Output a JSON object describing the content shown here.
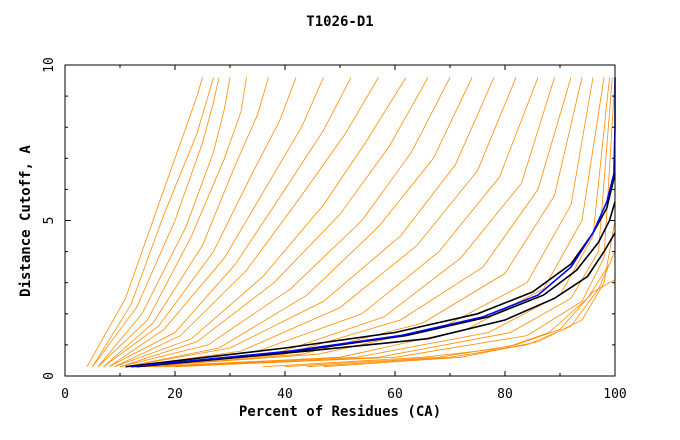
{
  "chart_data": {
    "type": "line",
    "title": "T1026-D1",
    "xlabel": "Percent of Residues (CA)",
    "ylabel": "Distance Cutoff, A",
    "xlim": [
      0,
      100
    ],
    "ylim": [
      0,
      10
    ],
    "x_ticks": [
      "0",
      "20",
      "40",
      "60",
      "80",
      "100"
    ],
    "y_ticks": [
      "0",
      "5",
      "10"
    ],
    "grid": false,
    "colors": {
      "many": "#ff8c00",
      "highlight_black": "#000000",
      "highlight_blue": "#0000ff"
    },
    "series": [
      {
        "color": "#ff8c00",
        "x": [
          4,
          11,
          17,
          22,
          24,
          25
        ],
        "y": [
          0.3,
          2.5,
          5.5,
          8.0,
          9.0,
          9.6
        ]
      },
      {
        "color": "#ff8c00",
        "x": [
          5,
          12,
          18,
          24,
          26,
          27
        ],
        "y": [
          0.3,
          2.3,
          5.2,
          7.8,
          9.0,
          9.6
        ]
      },
      {
        "color": "#ff8c00",
        "x": [
          5,
          13,
          20,
          25,
          27,
          28
        ],
        "y": [
          0.3,
          2.2,
          5.0,
          7.5,
          8.8,
          9.6
        ]
      },
      {
        "color": "#ff8c00",
        "x": [
          6,
          14,
          22,
          27,
          29,
          30
        ],
        "y": [
          0.3,
          2.0,
          4.8,
          7.2,
          8.6,
          9.6
        ]
      },
      {
        "color": "#ff8c00",
        "x": [
          6,
          15,
          23,
          29,
          32,
          33
        ],
        "y": [
          0.3,
          1.8,
          4.5,
          7.0,
          8.5,
          9.6
        ]
      },
      {
        "color": "#ff8c00",
        "x": [
          7,
          16,
          25,
          31,
          35,
          37
        ],
        "y": [
          0.3,
          1.7,
          4.2,
          6.8,
          8.4,
          9.6
        ]
      },
      {
        "color": "#ff8c00",
        "x": [
          7,
          17,
          27,
          34,
          39,
          42
        ],
        "y": [
          0.3,
          1.6,
          4.0,
          6.5,
          8.2,
          9.6
        ]
      },
      {
        "color": "#ff8c00",
        "x": [
          8,
          18,
          29,
          37,
          43,
          47
        ],
        "y": [
          0.3,
          1.5,
          3.8,
          6.2,
          8.0,
          9.6
        ]
      },
      {
        "color": "#ff8c00",
        "x": [
          8,
          20,
          31,
          40,
          47,
          52
        ],
        "y": [
          0.3,
          1.4,
          3.6,
          6.0,
          7.9,
          9.6
        ]
      },
      {
        "color": "#ff8c00",
        "x": [
          9,
          21,
          33,
          43,
          51,
          57
        ],
        "y": [
          0.3,
          1.3,
          3.4,
          5.8,
          7.8,
          9.6
        ]
      },
      {
        "color": "#ff8c00",
        "x": [
          9,
          23,
          36,
          47,
          55,
          62
        ],
        "y": [
          0.3,
          1.2,
          3.2,
          5.5,
          7.6,
          9.6
        ]
      },
      {
        "color": "#ff8c00",
        "x": [
          10,
          24,
          38,
          50,
          59,
          66
        ],
        "y": [
          0.3,
          1.1,
          3.0,
          5.2,
          7.4,
          9.6
        ]
      },
      {
        "color": "#ff8c00",
        "x": [
          10,
          26,
          41,
          54,
          63,
          70
        ],
        "y": [
          0.3,
          1.0,
          2.8,
          5.0,
          7.2,
          9.6
        ]
      },
      {
        "color": "#ff8c00",
        "x": [
          11,
          28,
          44,
          57,
          67,
          74
        ],
        "y": [
          0.3,
          0.9,
          2.6,
          4.8,
          7.0,
          9.6
        ]
      },
      {
        "color": "#ff8c00",
        "x": [
          11,
          30,
          47,
          61,
          71,
          78
        ],
        "y": [
          0.3,
          0.9,
          2.4,
          4.5,
          6.8,
          9.6
        ]
      },
      {
        "color": "#ff8c00",
        "x": [
          12,
          32,
          50,
          64,
          75,
          82
        ],
        "y": [
          0.3,
          0.8,
          2.2,
          4.2,
          6.6,
          9.6
        ]
      },
      {
        "color": "#ff8c00",
        "x": [
          12,
          35,
          54,
          68,
          79,
          86
        ],
        "y": [
          0.3,
          0.8,
          2.0,
          4.0,
          6.4,
          9.6
        ]
      },
      {
        "color": "#ff8c00",
        "x": [
          13,
          38,
          58,
          72,
          83,
          89
        ],
        "y": [
          0.3,
          0.7,
          1.9,
          3.8,
          6.2,
          9.6
        ]
      },
      {
        "color": "#ff8c00",
        "x": [
          13,
          40,
          61,
          76,
          86,
          92
        ],
        "y": [
          0.3,
          0.7,
          1.8,
          3.5,
          6.0,
          9.6
        ]
      },
      {
        "color": "#ff8c00",
        "x": [
          14,
          43,
          65,
          80,
          89,
          94
        ],
        "y": [
          0.3,
          0.7,
          1.7,
          3.3,
          5.8,
          9.6
        ]
      },
      {
        "color": "#ff8c00",
        "x": [
          14,
          46,
          69,
          84,
          92,
          96
        ],
        "y": [
          0.3,
          0.7,
          1.6,
          3.0,
          5.5,
          9.6
        ]
      },
      {
        "color": "#ff8c00",
        "x": [
          15,
          50,
          73,
          87,
          94,
          98
        ],
        "y": [
          0.3,
          0.6,
          1.5,
          2.8,
          5.0,
          9.6
        ]
      },
      {
        "color": "#ff8c00",
        "x": [
          16,
          53,
          77,
          90,
          96,
          99
        ],
        "y": [
          0.3,
          0.6,
          1.4,
          2.6,
          4.5,
          9.6
        ]
      },
      {
        "color": "#ff8c00",
        "x": [
          18,
          57,
          81,
          92,
          97,
          99.5
        ],
        "y": [
          0.3,
          0.6,
          1.4,
          2.5,
          4.0,
          9.6
        ]
      },
      {
        "color": "#ff8c00",
        "x": [
          20,
          60,
          84,
          94,
          98,
          100
        ],
        "y": [
          0.3,
          0.6,
          1.3,
          2.4,
          3.8,
          9.6
        ]
      },
      {
        "color": "#ff8c00",
        "x": [
          36,
          65,
          80,
          88,
          95,
          99
        ],
        "y": [
          0.3,
          0.6,
          0.9,
          1.4,
          2.5,
          3.6
        ]
      },
      {
        "color": "#ff8c00",
        "x": [
          40,
          68,
          82,
          90,
          96,
          100
        ],
        "y": [
          0.3,
          0.6,
          1.0,
          1.5,
          2.7,
          3.1
        ]
      },
      {
        "color": "#ff8c00",
        "x": [
          44,
          70,
          84,
          92,
          97,
          100
        ],
        "y": [
          0.3,
          0.6,
          1.0,
          1.6,
          2.8,
          4.0
        ]
      },
      {
        "color": "#ff8c00",
        "x": [
          47,
          72,
          86,
          94,
          98,
          100
        ],
        "y": [
          0.3,
          0.6,
          1.1,
          1.8,
          3.0,
          5.0
        ]
      },
      {
        "color": "#000000",
        "x": [
          11,
          40,
          60,
          75,
          85,
          92,
          96,
          98.5,
          100
        ],
        "y": [
          0.3,
          0.9,
          1.4,
          2.0,
          2.7,
          3.6,
          4.6,
          5.4,
          6.5
        ]
      },
      {
        "color": "#000000",
        "x": [
          12,
          42,
          62,
          77,
          87,
          93,
          97,
          99,
          100
        ],
        "y": [
          0.3,
          0.8,
          1.3,
          1.9,
          2.6,
          3.4,
          4.3,
          5.0,
          5.6
        ]
      },
      {
        "color": "#000000",
        "x": [
          13,
          44,
          66,
          80,
          89,
          95,
          98,
          100
        ],
        "y": [
          0.3,
          0.8,
          1.2,
          1.8,
          2.5,
          3.2,
          4.0,
          4.6
        ]
      },
      {
        "color": "#0000ff",
        "x": [
          12,
          41,
          61,
          76,
          86,
          92,
          96,
          98.5,
          99.8,
          100,
          100
        ],
        "y": [
          0.3,
          0.8,
          1.3,
          1.9,
          2.6,
          3.5,
          4.6,
          5.6,
          6.5,
          8.0,
          9.6
        ]
      }
    ]
  }
}
